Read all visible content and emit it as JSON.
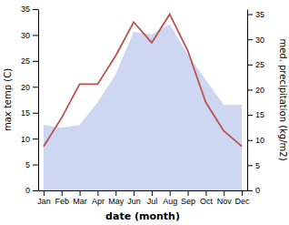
{
  "chart_data": {
    "type": "line",
    "xlabel": "date (month)",
    "ylabel": "max temp (C)",
    "y2label": "med. precipitation (kg/m2)",
    "categories": [
      "Jan",
      "Feb",
      "Mar",
      "Apr",
      "May",
      "Jun",
      "Jul",
      "Aug",
      "Sep",
      "Oct",
      "Nov",
      "Dec"
    ],
    "series": [
      {
        "type": "area",
        "axis": "y2",
        "color": "#c5d0f0",
        "values": [
          13.0,
          12.5,
          13.0,
          17.5,
          23.0,
          31.5,
          31.0,
          33.0,
          27.0,
          22.0,
          17.0,
          17.0
        ]
      },
      {
        "type": "line",
        "color": "#c0504d",
        "values": [
          8.5,
          14.0,
          20.5,
          20.5,
          26.0,
          32.5,
          28.5,
          34.0,
          27.0,
          17.0,
          11.5,
          8.5
        ]
      }
    ],
    "ylim": [
      0,
      35
    ],
    "yticks": [
      0,
      5,
      10,
      15,
      20,
      25,
      30,
      35
    ],
    "y2lim": [
      0,
      36
    ],
    "y2ticks": [
      0,
      5,
      10,
      15,
      20,
      25,
      30,
      35
    ]
  }
}
